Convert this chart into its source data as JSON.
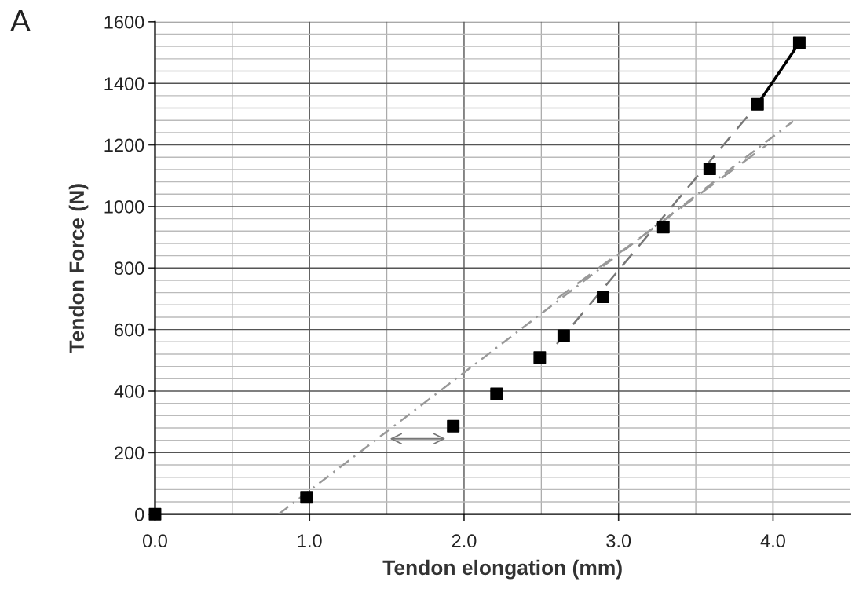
{
  "chart_data": {
    "type": "scatter",
    "title": "A",
    "xlabel": "Tendon elongation (mm)",
    "ylabel": "Tendon Force (N)",
    "xlim": [
      0,
      4.5
    ],
    "ylim": [
      0,
      1600
    ],
    "xticks": [
      {
        "value": 0,
        "label": "0.0"
      },
      {
        "value": 1,
        "label": "1.0"
      },
      {
        "value": 2,
        "label": "2.0"
      },
      {
        "value": 3,
        "label": "3.0"
      },
      {
        "value": 4,
        "label": "4.0"
      }
    ],
    "yticks": [
      0,
      200,
      400,
      600,
      800,
      1000,
      1200,
      1400,
      1600
    ],
    "grid": true,
    "series": [
      {
        "marker": "square",
        "color": "#000000",
        "x": [
          0.0,
          0.98,
          1.93,
          2.21,
          2.49,
          2.645,
          2.9,
          3.29,
          3.59,
          3.9,
          4.17
        ],
        "values": [
          0,
          55,
          286,
          391,
          509,
          580,
          706,
          933,
          1122,
          1332,
          1532
        ]
      },
      {
        "type": "line",
        "color": "#000000",
        "line_style": "solid",
        "x": [
          3.9,
          4.17
        ],
        "values": [
          1332,
          1532
        ]
      },
      {
        "type": "line",
        "color": "#777777",
        "line_style": "dashed",
        "x": [
          2.6,
          3.9
        ],
        "values": [
          553,
          1332
        ]
      },
      {
        "type": "line",
        "color": "#999999",
        "line_style": "dotted",
        "x": [
          0.8,
          4.13
        ],
        "values": [
          0,
          1277
        ]
      },
      {
        "type": "line",
        "color": "#999999",
        "line_style": "dashed",
        "x": [
          2.6,
          3.96
        ],
        "values": [
          700,
          1200
        ]
      },
      {
        "type": "line",
        "color": "#777777",
        "line_style": "solid",
        "x": [
          1.52,
          1.88
        ],
        "values": [
          245,
          245
        ]
      }
    ]
  }
}
